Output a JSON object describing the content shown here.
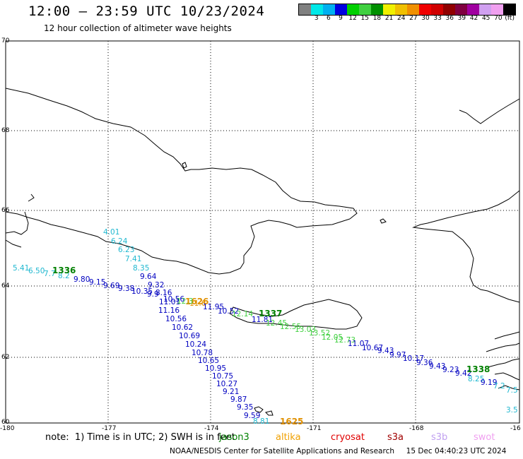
{
  "header": {
    "title": "12:00 – 23:59 UTC 10/23/2024",
    "subtitle": "12 hour collection of altimeter wave heights"
  },
  "colorbar": {
    "colors": [
      "#808080",
      "#00e8e8",
      "#00b0f0",
      "#0000e0",
      "#00d000",
      "#40d040",
      "#009000",
      "#f0f000",
      "#f0c000",
      "#f09000",
      "#f00000",
      "#d00000",
      "#900000",
      "#800040",
      "#a000a0",
      "#d0a0f0",
      "#f0a0f0",
      "#000000"
    ],
    "labels": [
      "",
      "3",
      "6",
      "9",
      "12",
      "15",
      "18",
      "21",
      "24",
      "27",
      "30",
      "33",
      "36",
      "39",
      "42",
      "45",
      "70",
      ""
    ],
    "unit": "(ft)"
  },
  "axes": {
    "lat_labels": [
      "70",
      "68",
      "66",
      "64",
      "62",
      "60"
    ],
    "lon_labels": [
      "-180",
      "-177",
      "-174",
      "-171",
      "-168",
      "-16"
    ]
  },
  "tracks": [
    {
      "color": "#20b8d0",
      "points": [
        [
          "4.01"
        ],
        [
          "6.24"
        ],
        [
          "6.23"
        ],
        [
          "7.41"
        ],
        [
          "8.35"
        ]
      ]
    },
    {
      "color": "#0000c0",
      "points": [
        [
          "9.64"
        ],
        [
          "9.32"
        ],
        [
          "8.16"
        ],
        [
          "10.56"
        ],
        [
          "11.01"
        ],
        [
          "11.16"
        ],
        [
          "10.56"
        ],
        [
          "10.62"
        ],
        [
          "10.69"
        ],
        [
          "10.24"
        ],
        [
          "10.78"
        ],
        [
          "10.65"
        ],
        [
          "10.95"
        ],
        [
          "10.75"
        ],
        [
          "10.27"
        ],
        [
          "9.21"
        ],
        [
          "9.87"
        ],
        [
          "9.35"
        ],
        [
          "9.59"
        ]
      ]
    },
    {
      "color": "#20b8d0",
      "points": [
        [
          "8.81"
        ]
      ]
    }
  ],
  "labels_text": {
    "west_cyan": [
      "5.41",
      "6.50",
      "7.7",
      "8.2"
    ],
    "west_blue": [
      "9.80",
      "9.15",
      "9.69",
      "9.38",
      "10.35",
      "9.9"
    ],
    "mid_blue": [
      "11.95",
      "10.52",
      "11.81"
    ],
    "mid_green": [
      "12.3",
      "12.14",
      "12.45",
      "12.55",
      "13.03",
      "13.52",
      "12.05",
      "12.73"
    ],
    "east_blue": [
      "11.07",
      "10.67",
      "9.43",
      "9.97",
      "10.17",
      "9.36",
      "9.43",
      "9.23",
      "9.42",
      "9.19"
    ],
    "east_cyan": [
      "8.25",
      "7.2",
      "7.5",
      "3.5"
    ],
    "orange_small": [
      "11.6"
    ],
    "times": {
      "t1336": "1336",
      "t1626": "1626",
      "t1337": "1337",
      "t1338": "1338",
      "t1625": "1625"
    }
  },
  "footer": {
    "note": "note:  1) Time is in UTC; 2) SWH is in feet",
    "satellites": [
      {
        "name": "jason3",
        "color": "#008000"
      },
      {
        "name": "altika",
        "color": "#f0a000"
      },
      {
        "name": "cryosat",
        "color": "#e00000"
      },
      {
        "name": "s3a",
        "color": "#a00000"
      },
      {
        "name": "s3b",
        "color": "#c0a0f0"
      },
      {
        "name": "swot",
        "color": "#f0a0f0"
      }
    ],
    "credit": "NOAA/NESDIS Center for Satellite Applications and Research     15 Dec 04:40:23 UTC 2024"
  }
}
